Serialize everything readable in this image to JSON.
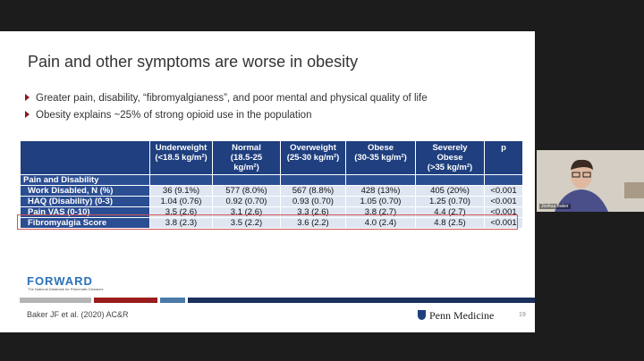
{
  "slide": {
    "title": "Pain and other symptoms are worse in obesity",
    "bullets": [
      "Greater pain, disability, “fibromyalgianess”, and poor mental and physical quality of life",
      "Obesity explains ~25% of strong opioid use in the population"
    ],
    "table": {
      "header": [
        [
          "Underweight",
          "(<18.5 kg/m²)"
        ],
        [
          "Normal",
          "(18.5-25",
          "kg/m²)"
        ],
        [
          "Overweight",
          "(25-30 kg/m²)"
        ],
        [
          "Obese",
          "(30-35 kg/m²)"
        ],
        [
          "Severely",
          "Obese",
          "(>35 kg/m²)"
        ],
        [
          "p"
        ]
      ],
      "section": "Pain and Disability",
      "rows": [
        [
          "Work Disabled, N (%)",
          "36 (9.1%)",
          "577 (8.0%)",
          "567 (8.8%)",
          "428 (13%)",
          "405 (20%)",
          "<0.001"
        ],
        [
          "HAQ (Disability) (0-3)",
          "1.04 (0.76)",
          "0.92 (0.70)",
          "0.93 (0.70)",
          "1.05 (0.70)",
          "1.25 (0.70)",
          "<0.001"
        ],
        [
          "Pain VAS (0-10)",
          "3.5 (2.6)",
          "3.1 (2.6)",
          "3.3 (2.6)",
          "3.8 (2.7)",
          "4.4 (2.7)",
          "<0.001"
        ],
        [
          "Fibromyalgia Score",
          "3.8 (2.3)",
          "3.5 (2.2)",
          "3.6 (2.2)",
          "4.0 (2.4)",
          "4.8 (2.5)",
          "<0.001"
        ]
      ]
    },
    "logo": "FORWARD",
    "logo_subtitle": "The National Databank for Rheumatic Diseases",
    "citation": "Baker JF et al. (2020) AC&R",
    "brand": "Penn Medicine",
    "page": "19"
  },
  "participant": {
    "name": "Joshua Baker"
  }
}
